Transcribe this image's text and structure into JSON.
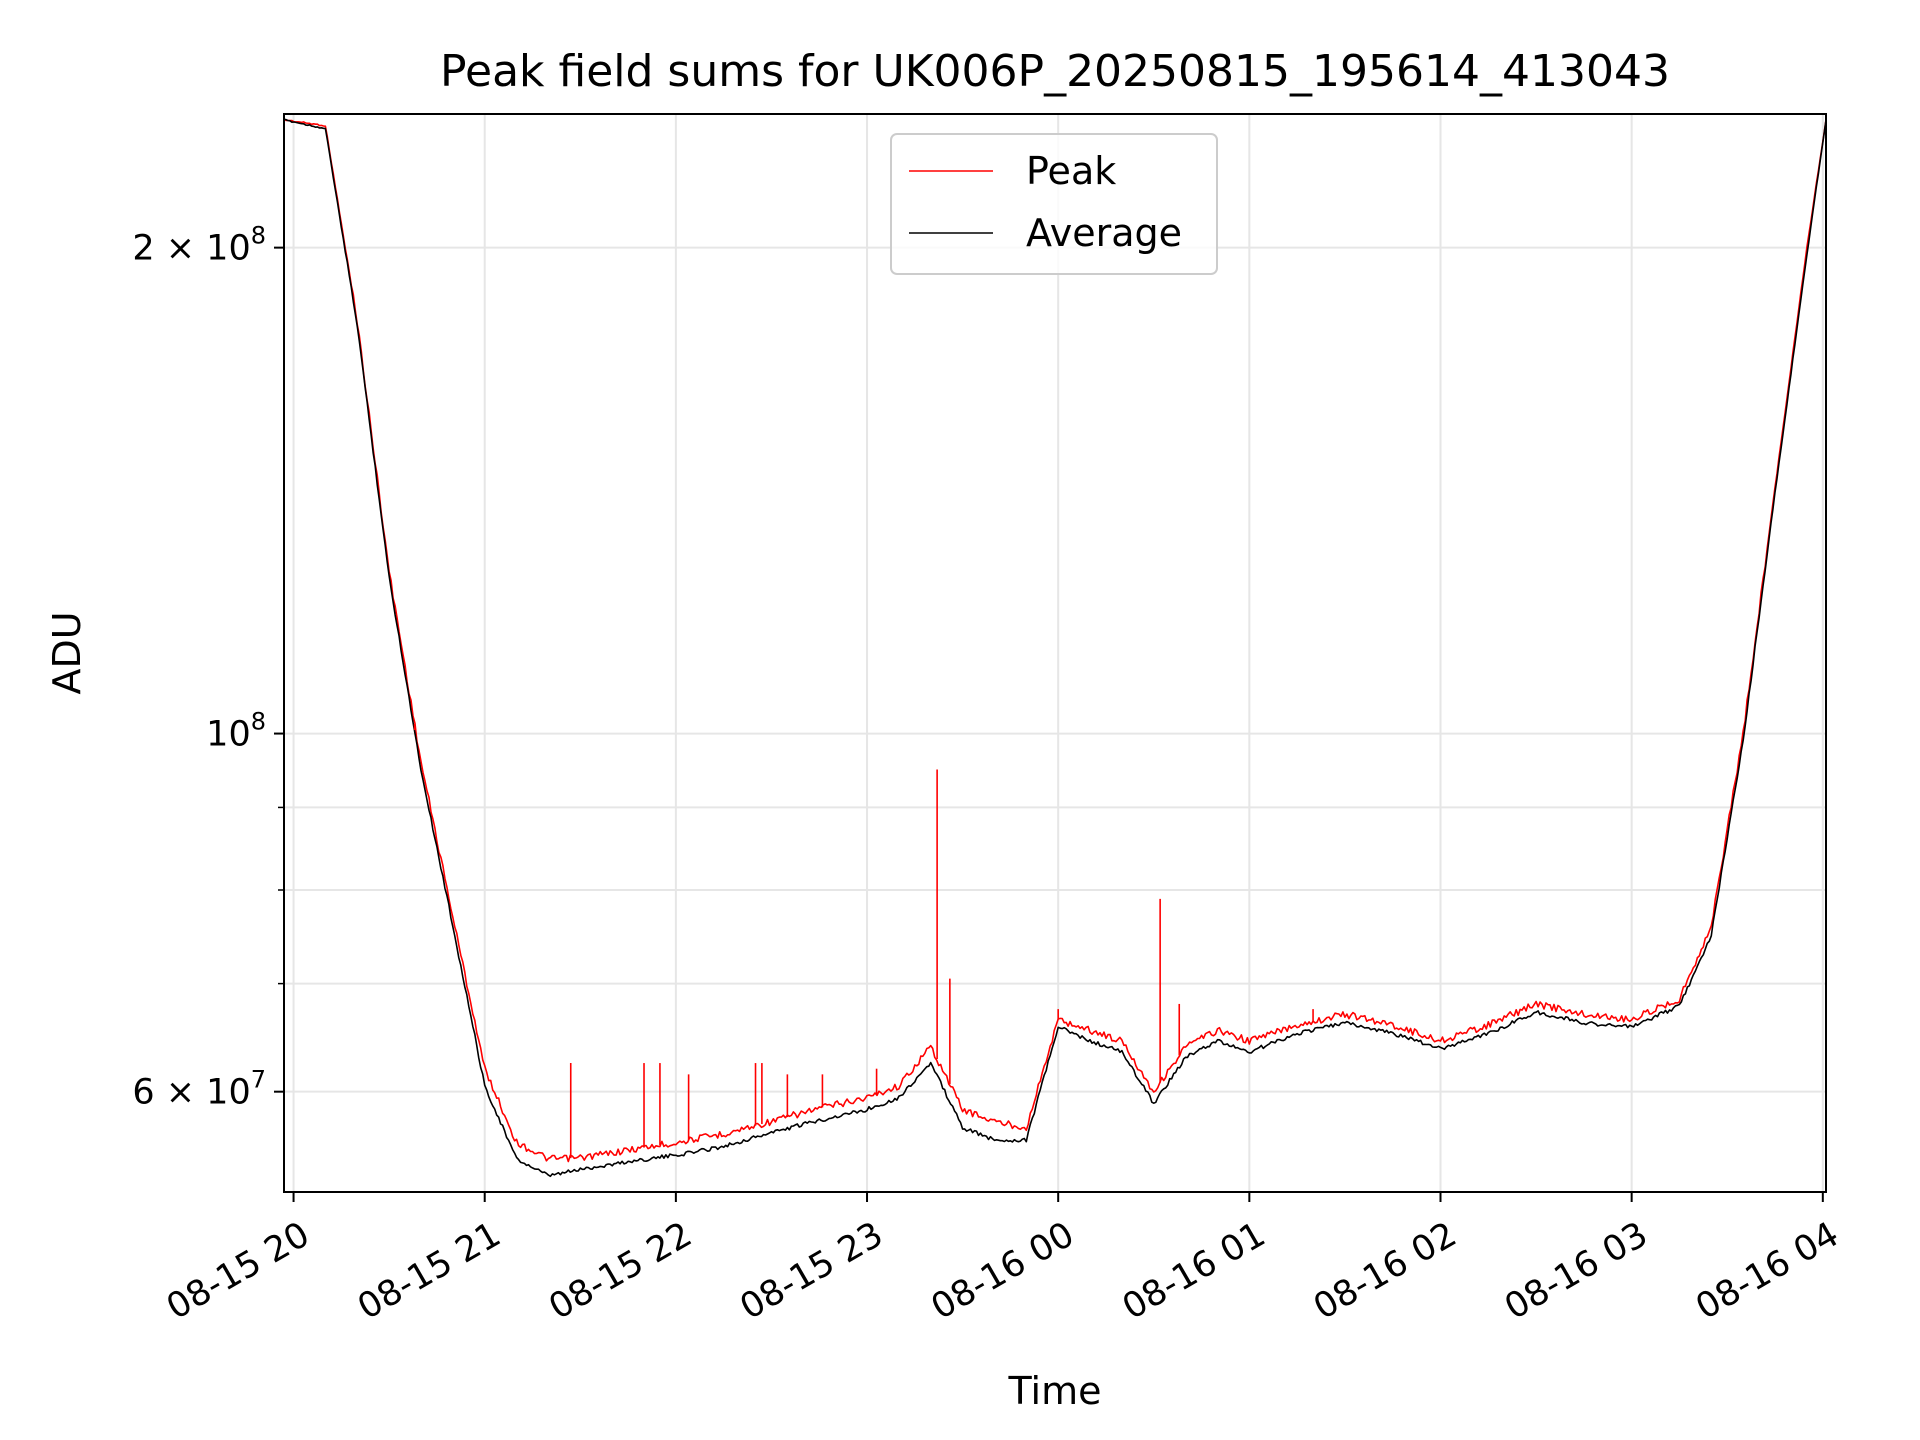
{
  "chart_data": {
    "type": "line",
    "title": "Peak field sums for UK006P_20250815_195614_413043",
    "xlabel": "Time",
    "ylabel": "ADU",
    "yscale": "log",
    "ylim": [
      52000000,
      242000000
    ],
    "xlim": [
      "2025-08-15 19:57",
      "2025-08-16 04:01"
    ],
    "grid": true,
    "legend": {
      "placement": "upper center"
    },
    "x_tick_labels": [
      "08-15 20",
      "08-15 21",
      "08-15 22",
      "08-15 23",
      "08-16 00",
      "08-16 01",
      "08-16 02",
      "08-16 03",
      "08-16 04"
    ],
    "y_tick_labels": [
      {
        "value": 200000000,
        "mantissa": "2",
        "exp": "8"
      },
      {
        "value": 100000000,
        "mantissa": "",
        "exp": "8"
      },
      {
        "value": 60000000,
        "mantissa": "6",
        "exp": "7"
      }
    ],
    "y_minor_ticks": [
      70000000,
      80000000,
      90000000
    ],
    "series": [
      {
        "name": "Peak",
        "color": "#ff0000",
        "x": [
          "2025-08-15 19:57",
          "2025-08-15 20:10",
          "2025-08-15 20:20",
          "2025-08-15 20:30",
          "2025-08-15 20:40",
          "2025-08-15 20:50",
          "2025-08-15 21:00",
          "2025-08-15 21:10",
          "2025-08-15 21:20",
          "2025-08-15 21:30",
          "2025-08-15 21:45",
          "2025-08-15 22:00",
          "2025-08-15 22:15",
          "2025-08-15 22:30",
          "2025-08-15 22:45",
          "2025-08-15 23:00",
          "2025-08-15 23:10",
          "2025-08-15 23:20",
          "2025-08-15 23:30",
          "2025-08-15 23:40",
          "2025-08-15 23:50",
          "2025-08-16 00:00",
          "2025-08-16 00:10",
          "2025-08-16 00:20",
          "2025-08-16 00:30",
          "2025-08-16 00:40",
          "2025-08-16 00:50",
          "2025-08-16 01:00",
          "2025-08-16 01:15",
          "2025-08-16 01:30",
          "2025-08-16 01:45",
          "2025-08-16 02:00",
          "2025-08-16 02:15",
          "2025-08-16 02:30",
          "2025-08-16 02:45",
          "2025-08-16 03:00",
          "2025-08-16 03:15",
          "2025-08-16 03:25",
          "2025-08-16 03:35",
          "2025-08-16 03:45",
          "2025-08-16 03:55",
          "2025-08-16 04:01"
        ],
        "y": [
          240000000,
          238000000,
          180000000,
          126000000,
          96000000,
          77000000,
          62000000,
          55800000,
          54500000,
          54600000,
          55200000,
          55800000,
          56500000,
          57500000,
          58600000,
          59500000,
          60500000,
          64000000,
          58500000,
          57500000,
          57000000,
          66500000,
          65500000,
          64500000,
          60000000,
          64000000,
          65500000,
          64500000,
          66000000,
          67000000,
          66000000,
          64500000,
          66000000,
          68000000,
          67000000,
          66500000,
          68500000,
          76000000,
          100000000,
          142000000,
          200000000,
          240000000
        ]
      },
      {
        "name": "Average",
        "color": "#000000",
        "x": [
          "2025-08-15 19:57",
          "2025-08-15 20:10",
          "2025-08-15 20:20",
          "2025-08-15 20:30",
          "2025-08-15 20:40",
          "2025-08-15 20:50",
          "2025-08-15 21:00",
          "2025-08-15 21:10",
          "2025-08-15 21:20",
          "2025-08-15 21:30",
          "2025-08-15 21:45",
          "2025-08-15 22:00",
          "2025-08-15 22:15",
          "2025-08-15 22:30",
          "2025-08-15 22:45",
          "2025-08-15 23:00",
          "2025-08-15 23:10",
          "2025-08-15 23:20",
          "2025-08-15 23:30",
          "2025-08-15 23:40",
          "2025-08-15 23:50",
          "2025-08-16 00:00",
          "2025-08-16 00:10",
          "2025-08-16 00:20",
          "2025-08-16 00:30",
          "2025-08-16 00:40",
          "2025-08-16 00:50",
          "2025-08-16 01:00",
          "2025-08-16 01:15",
          "2025-08-16 01:30",
          "2025-08-16 01:45",
          "2025-08-16 02:00",
          "2025-08-16 02:15",
          "2025-08-16 02:30",
          "2025-08-16 02:45",
          "2025-08-16 03:00",
          "2025-08-16 03:15",
          "2025-08-16 03:25",
          "2025-08-16 03:35",
          "2025-08-16 03:45",
          "2025-08-16 03:55",
          "2025-08-16 04:01"
        ],
        "y": [
          240000000,
          237000000,
          179000000,
          125000000,
          95000000,
          76000000,
          60500000,
          54500000,
          53200000,
          53700000,
          54300000,
          54800000,
          55500000,
          56600000,
          57600000,
          58500000,
          59500000,
          62500000,
          57000000,
          56000000,
          56000000,
          65800000,
          64500000,
          63500000,
          59000000,
          63000000,
          64500000,
          63500000,
          65200000,
          66200000,
          65200000,
          63800000,
          65200000,
          67200000,
          66200000,
          65800000,
          67800000,
          75000000,
          99000000,
          141000000,
          198000000,
          240000000
        ]
      }
    ],
    "spikes": {
      "x": [
        "2025-08-15 20:38",
        "2025-08-15 21:27",
        "2025-08-15 21:50",
        "2025-08-15 21:55",
        "2025-08-15 22:04",
        "2025-08-15 22:25",
        "2025-08-15 22:27",
        "2025-08-15 22:35",
        "2025-08-15 22:46",
        "2025-08-15 23:03",
        "2025-08-15 23:22",
        "2025-08-15 23:26",
        "2025-08-16 00:00",
        "2025-08-16 00:32",
        "2025-08-16 00:38",
        "2025-08-16 01:20"
      ],
      "y": [
        100500000,
        62500000,
        62500000,
        62500000,
        61500000,
        62500000,
        62500000,
        61500000,
        61500000,
        62000000,
        95000000,
        70500000,
        67500000,
        79000000,
        68000000,
        67500000
      ]
    }
  }
}
